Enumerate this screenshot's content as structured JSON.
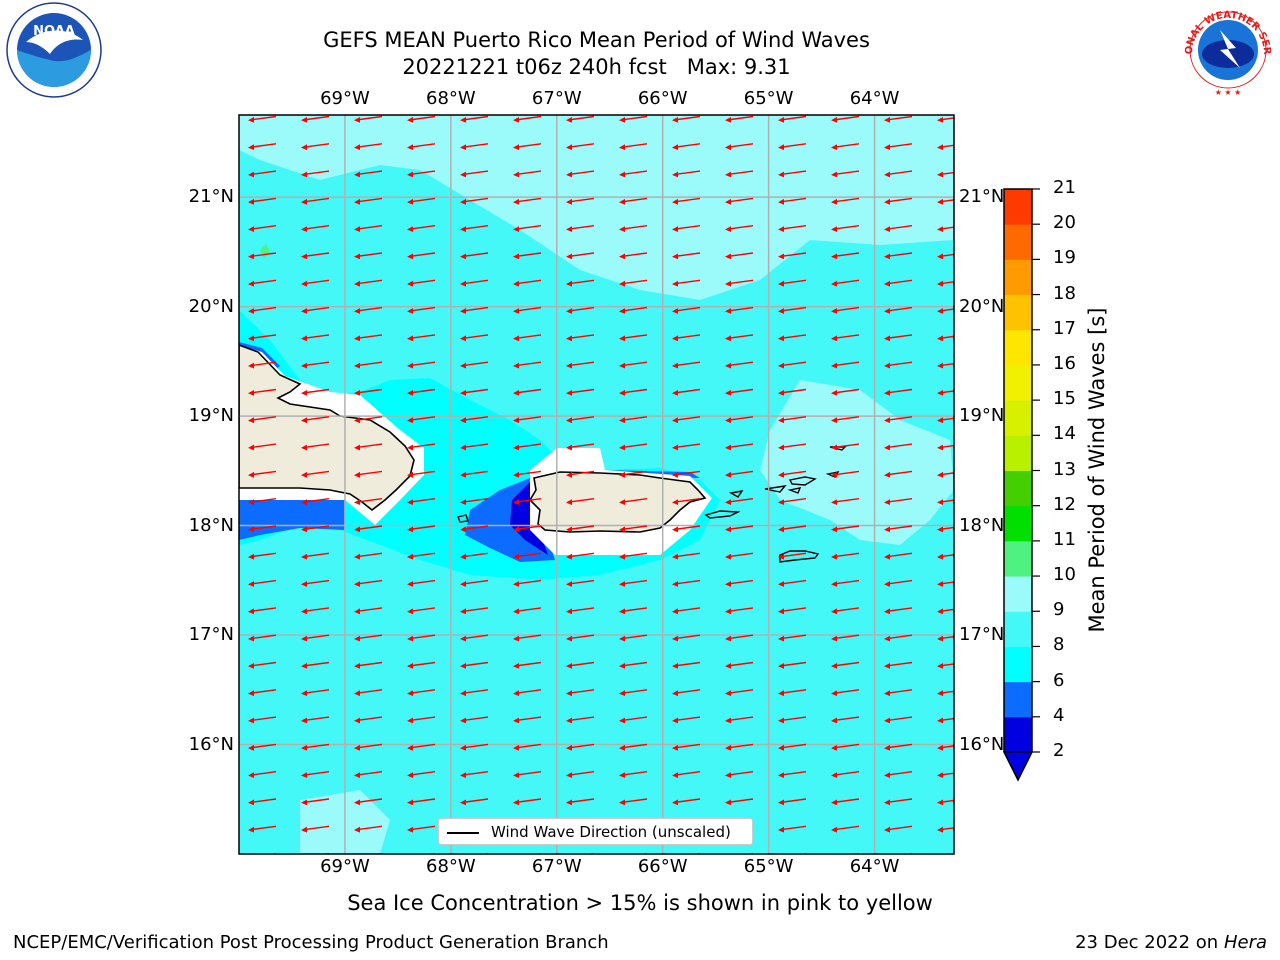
{
  "header": {
    "title_line1": "GEFS MEAN Puerto Rico Mean Period of Wind Waves",
    "title_line2": "20221221 t06z 240h fcst   Max: 9.31"
  },
  "map": {
    "lon_ticks": [
      "69°W",
      "68°W",
      "67°W",
      "66°W",
      "65°W",
      "64°W"
    ],
    "lat_ticks": [
      "21°N",
      "20°N",
      "19°N",
      "18°N",
      "17°N",
      "16°N"
    ],
    "lon_values": [
      -69,
      -68,
      -67,
      -66,
      -65,
      -64
    ],
    "lat_values": [
      21,
      20,
      19,
      18,
      17,
      16
    ],
    "extent": {
      "lon": [
        -70,
        -63.25
      ],
      "lat": [
        15,
        21.75
      ]
    },
    "arrow_color": "#ff0000",
    "land_color": "#efecdc",
    "legend_label": "Wind Wave Direction (unscaled)"
  },
  "colorbar": {
    "label": "Mean Period of Wind Waves [s]",
    "ticks": [
      "21",
      "20",
      "19",
      "18",
      "17",
      "16",
      "15",
      "14",
      "13",
      "12",
      "11",
      "10",
      "9",
      "8",
      "6",
      "4",
      "2"
    ],
    "levels": [
      2,
      4,
      6,
      8,
      9,
      10,
      11,
      12,
      13,
      14,
      15,
      16,
      17,
      18,
      19,
      20,
      21
    ],
    "colors": [
      "#0000e0",
      "#0b6cff",
      "#00ffff",
      "#44f8f8",
      "#9bfbfb",
      "#4ff280",
      "#00e000",
      "#44d000",
      "#b8f000",
      "#d6f000",
      "#f0f000",
      "#ffe600",
      "#ffc200",
      "#ff9a00",
      "#ff6a00",
      "#ff3a00",
      "#ff0000"
    ],
    "under_color": "#0000e0"
  },
  "footer": {
    "sea_ice_note": "Sea Ice Concentration > 15% is shown in pink to yellow",
    "left": "NCEP/EMC/Verification Post Processing Product Generation Branch",
    "right_date": "23 Dec 2022 on",
    "right_host": "Hera"
  },
  "logos": {
    "noaa_text": "NOAA",
    "nws_text": "NATIONAL WEATHER SERVICE"
  }
}
